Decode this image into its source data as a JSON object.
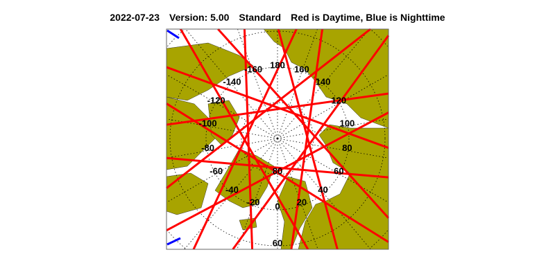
{
  "header": {
    "date": "2022-07-23",
    "version": "Version: 5.00",
    "mode": "Standard",
    "legend": "Red is Daytime, Blue is Nighttime"
  },
  "map": {
    "projection": "north polar stereographic",
    "longitude_labels": [
      "180",
      "160",
      "140",
      "120",
      "100",
      "80",
      "60",
      "40",
      "20",
      "0",
      "-20",
      "-40",
      "-60",
      "-80",
      "-100",
      "-120",
      "-140",
      "-160"
    ],
    "longitudes": [
      180,
      160,
      140,
      120,
      100,
      80,
      60,
      40,
      20,
      0,
      -20,
      -40,
      -60,
      -80,
      -100,
      -120,
      -140,
      -160
    ],
    "latitude_labels": [
      "80",
      "60"
    ],
    "colors": {
      "land": "#a8a400",
      "day_track": "#ff0000",
      "night_track": "#0000ff",
      "grid": "#000000"
    }
  }
}
